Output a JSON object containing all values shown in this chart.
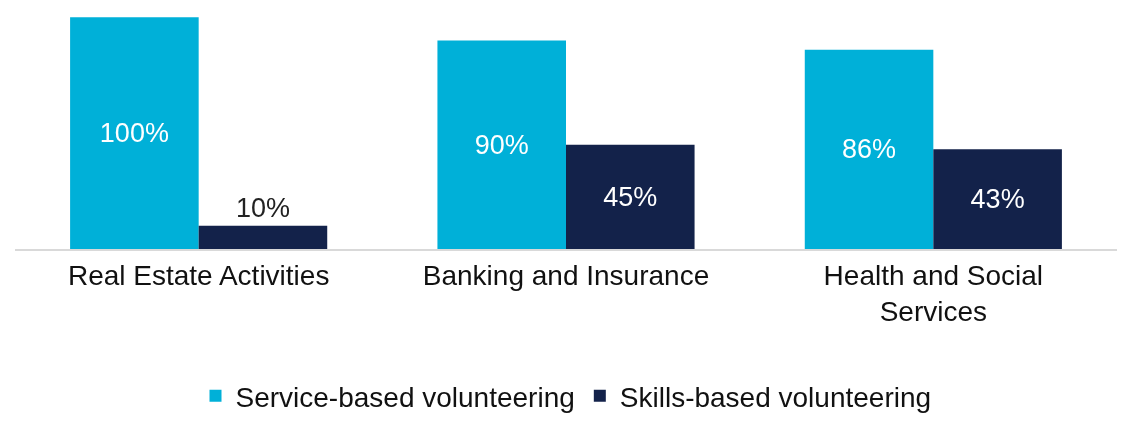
{
  "chart_data": {
    "type": "bar",
    "categories": [
      "Real Estate Activities",
      "Banking and Insurance",
      "Health and Social Services"
    ],
    "series": [
      {
        "name": "Service-based volunteering",
        "color": "#00b0d8",
        "values": [
          100,
          90,
          86
        ],
        "value_labels": [
          "100%",
          "90%",
          "86%"
        ]
      },
      {
        "name": "Skills-based volunteering",
        "color": "#13224a",
        "values": [
          10,
          45,
          43
        ],
        "value_labels": [
          "10%",
          "45%",
          "43%"
        ]
      }
    ],
    "legend": "bottom"
  }
}
